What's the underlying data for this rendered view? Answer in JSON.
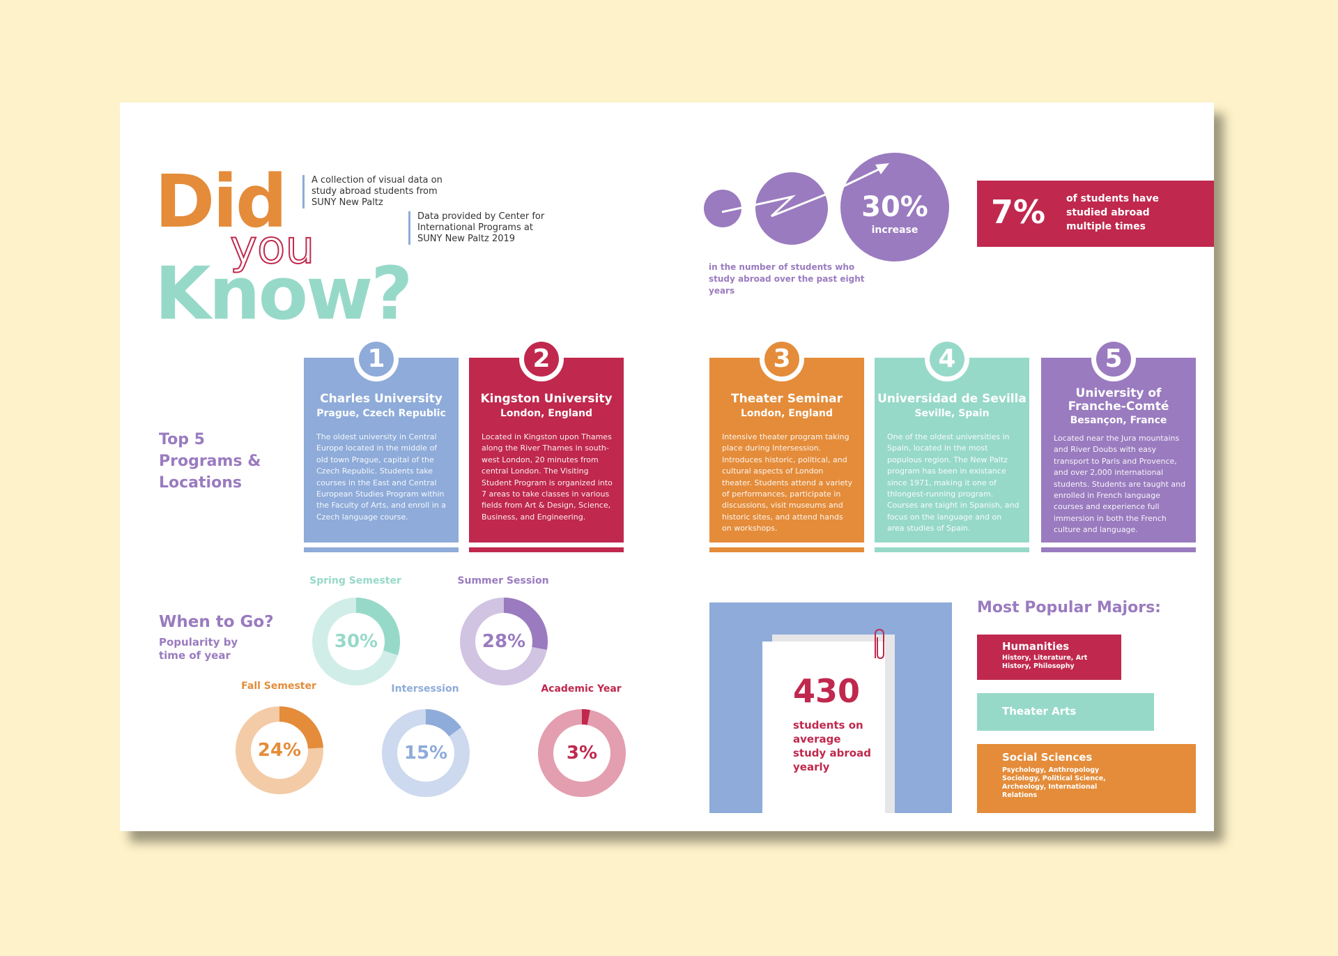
{
  "colors": {
    "orange": "#e48c3a",
    "teal": "#97d9c9",
    "crimson": "#c0284d",
    "blue": "#8eabd9",
    "purple": "#9a7bbf"
  },
  "title": {
    "did": "Did",
    "you": "you",
    "know": "Know?"
  },
  "intro": {
    "collection": "A collection of visual data on study abroad students from SUNY New Paltz",
    "source": "Data provided by Center for International Programs at SUNY New Paltz 2019"
  },
  "growth": {
    "value": "30%",
    "word": "increase",
    "caption": "in the number of students who study abroad over the past eight years"
  },
  "multiple": {
    "value": "7%",
    "caption": "of students have studied abroad multiple times"
  },
  "top5": {
    "heading": "Top 5 Programs & Locations",
    "programs": [
      {
        "number": "1",
        "name": "Charles University",
        "location": "Prague, Czech Republic",
        "description": "The oldest university in Central Europe located in the middle of old town Prague, capital of the Czech Republic. Students take courses in the East and Central European Studies Program within the Faculty of Arts, and enroll in a Czech language course.",
        "color": "#8eabd9"
      },
      {
        "number": "2",
        "name": "Kingston University",
        "location": "London, England",
        "description": "Located in Kingston upon Thames along the River Thames in south-west London, 20 minutes from central London. The Visiting Student Program is organized into 7 areas to take classes in various fields from Art & Design, Science, Business, and Engineering.",
        "color": "#c0284d"
      },
      {
        "number": "3",
        "name": "Theater Seminar",
        "location": "London, England",
        "description": "Intensive theater program taking place during Intersession. Introduces historic, political, and cultural aspects of London theater. Students attend a variety of performances, participate in discussions, visit museums and historic sites, and attend hands on workshops.",
        "color": "#e48c3a"
      },
      {
        "number": "4",
        "name": "Universidad de Sevilla",
        "location": "Seville, Spain",
        "description": "One of the oldest universities in Spain, located in the most populous region. The New Paltz program has been in existance since 1971, making it one of thlongest-running program. Courses are taight in Spanish, and focus on the language and on area studies of Spain.",
        "color": "#97d9c9"
      },
      {
        "number": "5",
        "name": "University of Franche-Comté",
        "location": "Besançon, France",
        "description": "Located near the Jura mountains and River Doubs with easy transport to Paris and Provence, and over 2,000 international students. Students are taught and enrolled in French language courses and experience full immersion in both the French culture and language.",
        "color": "#9a7bbf"
      }
    ]
  },
  "when": {
    "heading": "When to Go?",
    "subheading": "Popularity by time of year",
    "terms": [
      {
        "label": "Spring Semester",
        "percent": 30,
        "text": "30%",
        "color": "#97d9c9"
      },
      {
        "label": "Summer Session",
        "percent": 28,
        "text": "28%",
        "color": "#9a7bbf"
      },
      {
        "label": "Fall Semester",
        "percent": 24,
        "text": "24%",
        "color": "#e48c3a"
      },
      {
        "label": "Intersession",
        "percent": 15,
        "text": "15%",
        "color": "#8eabd9"
      },
      {
        "label": "Academic Year",
        "percent": 3,
        "text": "3%",
        "color": "#c0284d"
      }
    ]
  },
  "average": {
    "value": "430",
    "caption": "students on average study abroad yearly"
  },
  "majors": {
    "heading": "Most Popular Majors:",
    "items": [
      {
        "name": "Humanities",
        "detail": "History, Literature, Art History, Philosophy",
        "color": "#c0284d"
      },
      {
        "name": "Theater Arts",
        "detail": "",
        "color": "#97d9c9"
      },
      {
        "name": "Social Sciences",
        "detail": "Psychology, Anthropology Sociology, Political Science, Archeology, International Relations",
        "color": "#e48c3a"
      }
    ]
  }
}
